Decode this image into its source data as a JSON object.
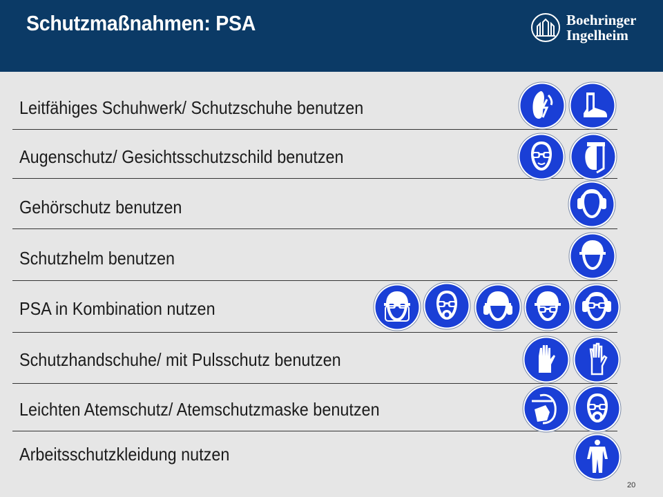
{
  "slide": {
    "title": "Schutzmaßnahmen: PSA",
    "page_number": "20"
  },
  "logo": {
    "line1": "Boehringer",
    "line2": "Ingelheim"
  },
  "rows": [
    {
      "label": "Leitfähiges Schuhwerk/ Schutzschuhe benutzen",
      "icons": [
        "antistatic-footwear-icon",
        "safety-boot-icon"
      ]
    },
    {
      "label": "Augenschutz/ Gesichtsschutzschild benutzen",
      "icons": [
        "eye-protection-icon",
        "face-shield-icon"
      ]
    },
    {
      "label": "Gehörschutz benutzen",
      "icons": [
        "ear-protection-icon"
      ]
    },
    {
      "label": "Schutzhelm benutzen",
      "icons": [
        "hard-hat-icon"
      ]
    },
    {
      "label": "PSA in Kombination nutzen",
      "icons": [
        "helmet-face-shield-icon",
        "respirator-goggles-icon",
        "helmet-ear-protection-icon",
        "helmet-goggles-icon",
        "goggles-ear-protection-icon"
      ]
    },
    {
      "label": "Schutzhandschuhe/ mit Pulsschutz benutzen",
      "icons": [
        "protective-gloves-icon",
        "gauntlet-glove-icon"
      ]
    },
    {
      "label": "Leichten Atemschutz/ Atemschutzmaske benutzen",
      "icons": [
        "dust-mask-icon",
        "respirator-mask-icon"
      ]
    },
    {
      "label": "Arbeitsschutzkleidung nutzen",
      "icons": [
        "protective-clothing-icon"
      ]
    }
  ],
  "colors": {
    "header": "#0b3a66",
    "sign_blue": "#1a3fd6",
    "background": "#e6e6e6"
  }
}
